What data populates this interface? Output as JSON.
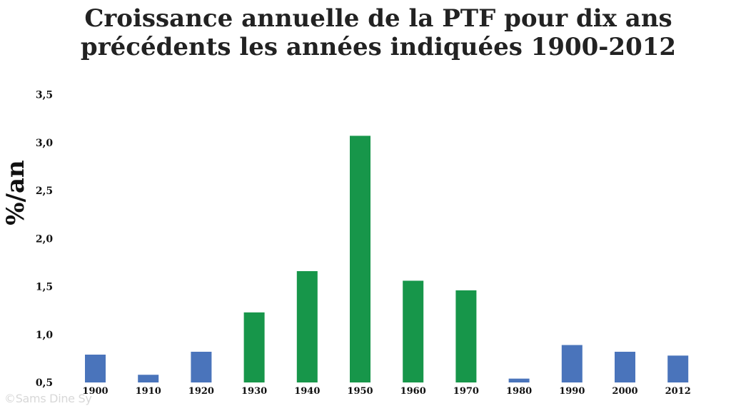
{
  "chart_data": {
    "type": "bar",
    "title_lines": [
      "Croissance annuelle de la PTF pour dix ans",
      "précédents les années indiquées 1900-2012"
    ],
    "ylabel": "%/an",
    "xlabel": "",
    "categories": [
      "1900",
      "1910",
      "1920",
      "1930",
      "1940",
      "1950",
      "1960",
      "1970",
      "1980",
      "1990",
      "2000",
      "2012"
    ],
    "values": [
      0.79,
      0.58,
      0.82,
      1.23,
      1.66,
      3.07,
      1.56,
      1.46,
      0.54,
      0.89,
      0.82,
      0.78
    ],
    "bar_colors": [
      "#4a74bb",
      "#4a74bb",
      "#4a74bb",
      "#17964a",
      "#17964a",
      "#17964a",
      "#17964a",
      "#17964a",
      "#4a74bb",
      "#4a74bb",
      "#4a74bb",
      "#4a74bb"
    ],
    "yticks": [
      "0,5",
      "1,0",
      "1,5",
      "2,0",
      "2,5",
      "3,0",
      "3,5"
    ],
    "ytick_values": [
      0.5,
      1.0,
      1.5,
      2.0,
      2.5,
      3.0,
      3.5
    ],
    "ylim": [
      0.5,
      3.5
    ],
    "grid": false,
    "legend": false
  },
  "watermark": "©Sams Dine Sy"
}
